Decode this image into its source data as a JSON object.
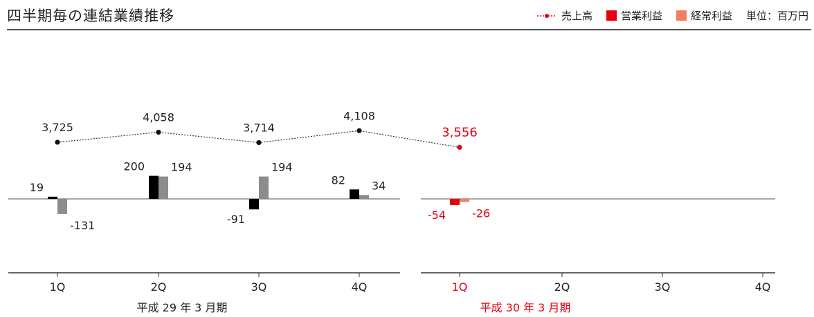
{
  "chart_data": {
    "title": "四半期毎の連結業績推移",
    "type": "bar+line",
    "legend": {
      "sales": "売上高",
      "operating": "営業利益",
      "ordinary": "経常利益",
      "unit": "単位：百万円"
    },
    "colors": {
      "fy29_operating": "#000000",
      "fy29_ordinary": "#8c8c8c",
      "fy30_operating": "#e60012",
      "fy30_ordinary": "#f08060",
      "fy29_text": "#222222",
      "fy30_text": "#e60012",
      "line": "#333333"
    },
    "periods": [
      {
        "label": "平成 29 年 3 月期",
        "categories": [
          "1Q",
          "2Q",
          "3Q",
          "4Q"
        ],
        "sales": [
          3725,
          4058,
          3714,
          4108
        ],
        "sales_labels": [
          "3,725",
          "4,058",
          "3,714",
          "4,108"
        ],
        "operating_profit": [
          19,
          200,
          -91,
          82
        ],
        "ordinary_profit": [
          -131,
          194,
          194,
          34
        ]
      },
      {
        "label": "平成 30 年 3 月期",
        "categories": [
          "1Q",
          "2Q",
          "3Q",
          "4Q"
        ],
        "sales": [
          3556,
          null,
          null,
          null
        ],
        "sales_labels": [
          "3,556",
          null,
          null,
          null
        ],
        "operating_profit": [
          -54,
          null,
          null,
          null
        ],
        "ordinary_profit": [
          -26,
          null,
          null,
          null
        ]
      }
    ]
  }
}
